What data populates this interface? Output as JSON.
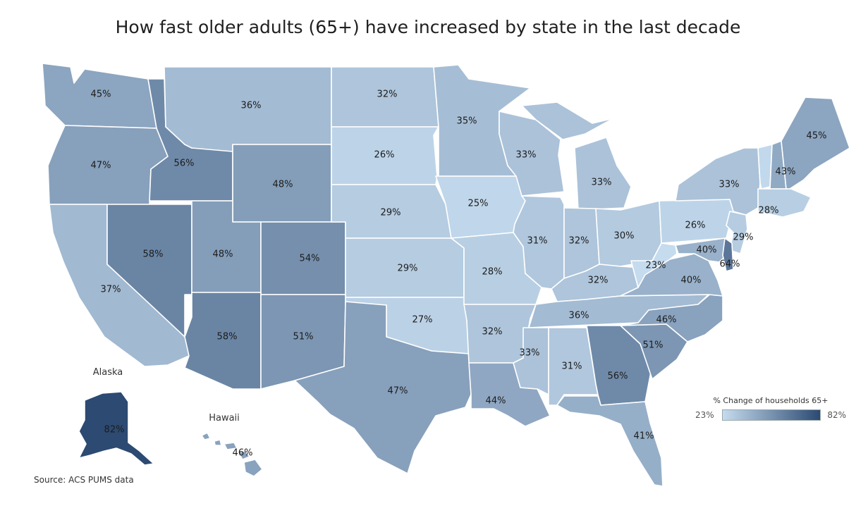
{
  "title": "How fast older adults (65+) have increased by state in the last decade",
  "source": "Source: ACS PUMS data",
  "legend": {
    "title": "% Change of households 65+",
    "min_label": "23%",
    "max_label": "82%",
    "min": 23,
    "max": 82,
    "color_low": "#c5dbee",
    "color_high": "#2c4a72"
  },
  "insets": {
    "alaska": "Alaska",
    "hawaii": "Hawaii"
  },
  "states": {
    "WA": {
      "name": "Washington",
      "value": 45
    },
    "OR": {
      "name": "Oregon",
      "value": 47
    },
    "CA": {
      "name": "California",
      "value": 37
    },
    "ID": {
      "name": "Idaho",
      "value": 56
    },
    "NV": {
      "name": "Nevada",
      "value": 58
    },
    "MT": {
      "name": "Montana",
      "value": 36
    },
    "WY": {
      "name": "Wyoming",
      "value": 48
    },
    "UT": {
      "name": "Utah",
      "value": 48
    },
    "CO": {
      "name": "Colorado",
      "value": 54
    },
    "AZ": {
      "name": "Arizona",
      "value": 58
    },
    "NM": {
      "name": "New Mexico",
      "value": 51
    },
    "ND": {
      "name": "North Dakota",
      "value": 32
    },
    "SD": {
      "name": "South Dakota",
      "value": 26
    },
    "NE": {
      "name": "Nebraska",
      "value": 29
    },
    "KS": {
      "name": "Kansas",
      "value": 29
    },
    "OK": {
      "name": "Oklahoma",
      "value": 27
    },
    "TX": {
      "name": "Texas",
      "value": 47
    },
    "MN": {
      "name": "Minnesota",
      "value": 35
    },
    "IA": {
      "name": "Iowa",
      "value": 25
    },
    "MO": {
      "name": "Missouri",
      "value": 28
    },
    "AR": {
      "name": "Arkansas",
      "value": 32
    },
    "LA": {
      "name": "Louisiana",
      "value": 44
    },
    "WI": {
      "name": "Wisconsin",
      "value": 33
    },
    "IL": {
      "name": "Illinois",
      "value": 31
    },
    "MI": {
      "name": "Michigan",
      "value": 33
    },
    "IN": {
      "name": "Indiana",
      "value": 32
    },
    "OH": {
      "name": "Ohio",
      "value": 30
    },
    "KY": {
      "name": "Kentucky",
      "value": 32
    },
    "TN": {
      "name": "Tennessee",
      "value": 36
    },
    "MS": {
      "name": "Mississippi",
      "value": 33
    },
    "AL": {
      "name": "Alabama",
      "value": 31
    },
    "GA": {
      "name": "Georgia",
      "value": 56
    },
    "FL": {
      "name": "Florida",
      "value": 41
    },
    "SC": {
      "name": "South Carolina",
      "value": 51
    },
    "NC": {
      "name": "North Carolina",
      "value": 46
    },
    "VA": {
      "name": "Virginia",
      "value": 40
    },
    "WV": {
      "name": "West Virginia",
      "value": 23
    },
    "PA": {
      "name": "Pennsylvania",
      "value": 26
    },
    "NY": {
      "name": "New York",
      "value": 33
    },
    "NJ": {
      "name": "New Jersey",
      "value": 29
    },
    "MD": {
      "name": "Maryland",
      "value": 40
    },
    "DE": {
      "name": "Delaware",
      "value": 64
    },
    "CT": {
      "name": "Connecticut",
      "value": 28
    },
    "VT": {
      "name": "Vermont",
      "value": null
    },
    "NH": {
      "name": "New Hampshire",
      "value": 43
    },
    "ME": {
      "name": "Maine",
      "value": 45
    },
    "AK": {
      "name": "Alaska",
      "value": 82
    },
    "HI": {
      "name": "Hawaii",
      "value": 46
    }
  },
  "labels": {
    "WA": "45%",
    "OR": "47%",
    "CA": "37%",
    "ID": "56%",
    "NV": "58%",
    "MT": "36%",
    "WY": "48%",
    "UT": "48%",
    "CO": "54%",
    "AZ": "58%",
    "NM": "51%",
    "ND": "32%",
    "SD": "26%",
    "NE": "29%",
    "KS": "29%",
    "OK": "27%",
    "TX": "47%",
    "MN": "35%",
    "IA": "25%",
    "MO": "28%",
    "AR": "32%",
    "LA": "44%",
    "WI": "33%",
    "IL": "31%",
    "MI": "33%",
    "IN": "32%",
    "OH": "30%",
    "KY": "32%",
    "TN": "36%",
    "MS": "33%",
    "AL": "31%",
    "GA": "56%",
    "FL": "41%",
    "SC": "51%",
    "NC": "46%",
    "VA": "40%",
    "WV": "23%",
    "PA": "26%",
    "NY": "33%",
    "NJ": "29%",
    "MD": "40%",
    "DE": "64%",
    "CT": "28%",
    "NH": "43%",
    "ME": "45%",
    "AK": "82%",
    "HI": "46%"
  }
}
